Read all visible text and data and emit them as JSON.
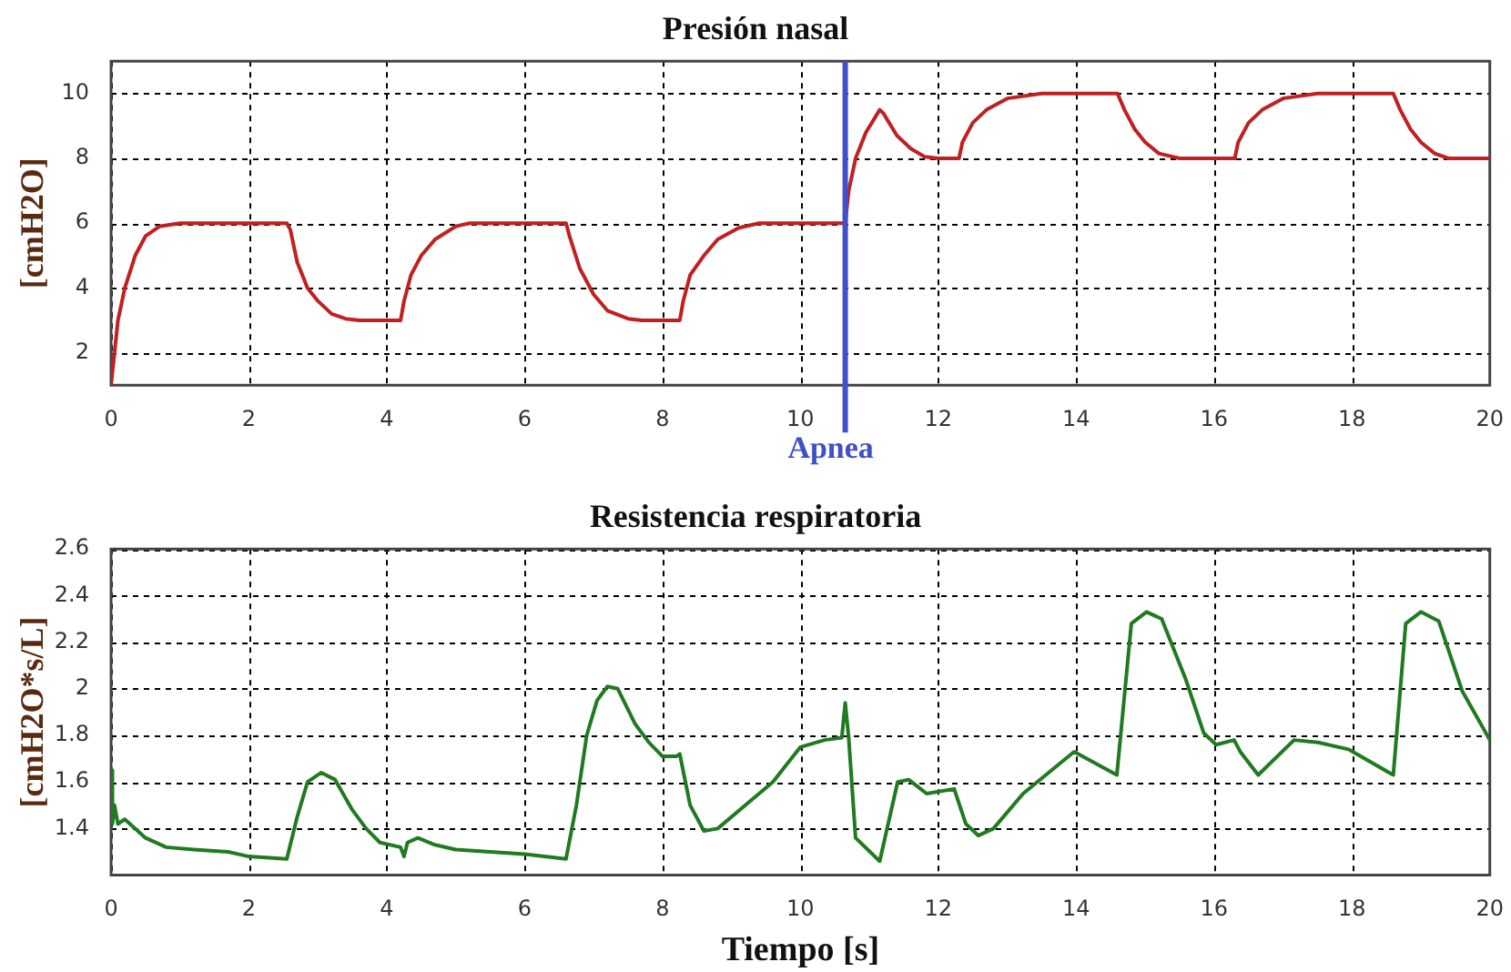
{
  "chart_data": [
    {
      "type": "line",
      "title": "Presión nasal",
      "ylabel": "[cmH2O]",
      "xlim": [
        0,
        20
      ],
      "xticks": [
        0,
        2,
        4,
        6,
        8,
        10,
        12,
        14,
        16,
        18,
        20
      ],
      "ylim": [
        1,
        11
      ],
      "yticks": [
        2,
        4,
        6,
        8,
        10
      ],
      "grid": true,
      "marker": "none",
      "line_style": "solid",
      "ref_lines": [
        {
          "axis": "x",
          "value": 10.65,
          "label": "Apnea",
          "color": "#4050c8"
        }
      ],
      "series": [
        {
          "color": "#c02020",
          "x": [
            0,
            0.05,
            0.1,
            0.2,
            0.35,
            0.5,
            0.7,
            1.0,
            2.55,
            2.6,
            2.7,
            2.85,
            3.0,
            3.2,
            3.4,
            3.6,
            4.2,
            4.25,
            4.35,
            4.5,
            4.7,
            5.0,
            5.2,
            6.6,
            6.65,
            6.8,
            7.0,
            7.2,
            7.5,
            7.7,
            8.25,
            8.3,
            8.4,
            8.6,
            8.8,
            9.1,
            9.4,
            10.65,
            10.7,
            10.8,
            10.95,
            11.15,
            11.2,
            11.4,
            11.6,
            11.8,
            12.0,
            12.3,
            12.35,
            12.5,
            12.7,
            13.0,
            13.5,
            14.6,
            14.7,
            14.85,
            15.0,
            15.2,
            15.5,
            16.3,
            16.35,
            16.5,
            16.7,
            17.0,
            17.5,
            18.6,
            18.7,
            18.85,
            19.0,
            19.2,
            19.4,
            20
          ],
          "values": [
            1,
            2,
            3,
            4,
            5,
            5.6,
            5.9,
            6,
            6,
            5.8,
            4.8,
            4,
            3.6,
            3.2,
            3.05,
            3,
            3,
            3.6,
            4.4,
            5,
            5.5,
            5.9,
            6,
            6,
            5.6,
            4.6,
            3.8,
            3.3,
            3.05,
            3,
            3,
            3.6,
            4.4,
            5,
            5.5,
            5.85,
            6,
            6,
            7,
            8,
            8.8,
            9.5,
            9.4,
            8.7,
            8.3,
            8.05,
            8,
            8,
            8.5,
            9.1,
            9.5,
            9.85,
            10,
            10,
            9.5,
            8.9,
            8.5,
            8.15,
            8,
            8,
            8.5,
            9.1,
            9.5,
            9.85,
            10,
            10,
            9.5,
            8.9,
            8.5,
            8.15,
            8,
            8
          ]
        }
      ]
    },
    {
      "type": "line",
      "title": "Resistencia respiratoria",
      "xlabel": "Tiempo [s]",
      "ylabel": "[cmH2O*s/L]",
      "xlim": [
        0,
        20
      ],
      "xticks": [
        0,
        2,
        4,
        6,
        8,
        10,
        12,
        14,
        16,
        18,
        20
      ],
      "ylim": [
        1.2,
        2.6
      ],
      "yticks": [
        1.4,
        1.6,
        1.8,
        2,
        2.2,
        2.4,
        2.6
      ],
      "grid": true,
      "marker": "none",
      "line_style": "solid",
      "series": [
        {
          "color": "#207a20",
          "x": [
            0,
            0.02,
            0.05,
            0.1,
            0.2,
            0.5,
            0.8,
            1.2,
            1.7,
            2.0,
            2.55,
            2.7,
            2.85,
            3.05,
            3.25,
            3.5,
            3.7,
            3.9,
            4.2,
            4.25,
            4.3,
            4.45,
            4.7,
            5.0,
            5.5,
            6.0,
            6.6,
            6.75,
            6.9,
            7.05,
            7.2,
            7.35,
            7.6,
            7.8,
            8.0,
            8.2,
            8.25,
            8.4,
            8.6,
            8.8,
            9.2,
            9.6,
            10.0,
            10.35,
            10.6,
            10.65,
            10.7,
            10.8,
            11.15,
            11.41,
            11.57,
            11.83,
            12.23,
            12.4,
            12.58,
            12.8,
            13.23,
            13.97,
            14.59,
            14.8,
            15.02,
            15.24,
            15.59,
            15.85,
            16.03,
            16.29,
            16.38,
            16.64,
            17.16,
            17.51,
            17.95,
            18.6,
            18.78,
            19.0,
            19.26,
            19.6,
            20
          ],
          "values": [
            1.65,
            1.42,
            1.5,
            1.42,
            1.44,
            1.36,
            1.32,
            1.31,
            1.3,
            1.28,
            1.27,
            1.45,
            1.6,
            1.64,
            1.61,
            1.48,
            1.4,
            1.34,
            1.32,
            1.28,
            1.34,
            1.36,
            1.33,
            1.31,
            1.3,
            1.29,
            1.27,
            1.5,
            1.8,
            1.95,
            2.01,
            2.0,
            1.85,
            1.77,
            1.71,
            1.71,
            1.72,
            1.5,
            1.39,
            1.4,
            1.5,
            1.6,
            1.75,
            1.78,
            1.79,
            1.94,
            1.79,
            1.36,
            1.26,
            1.6,
            1.61,
            1.55,
            1.57,
            1.42,
            1.37,
            1.4,
            1.55,
            1.73,
            1.63,
            2.28,
            2.33,
            2.3,
            2.04,
            1.81,
            1.76,
            1.78,
            1.73,
            1.63,
            1.78,
            1.77,
            1.74,
            1.63,
            2.28,
            2.33,
            2.29,
            1.99,
            1.78
          ]
        }
      ]
    }
  ]
}
